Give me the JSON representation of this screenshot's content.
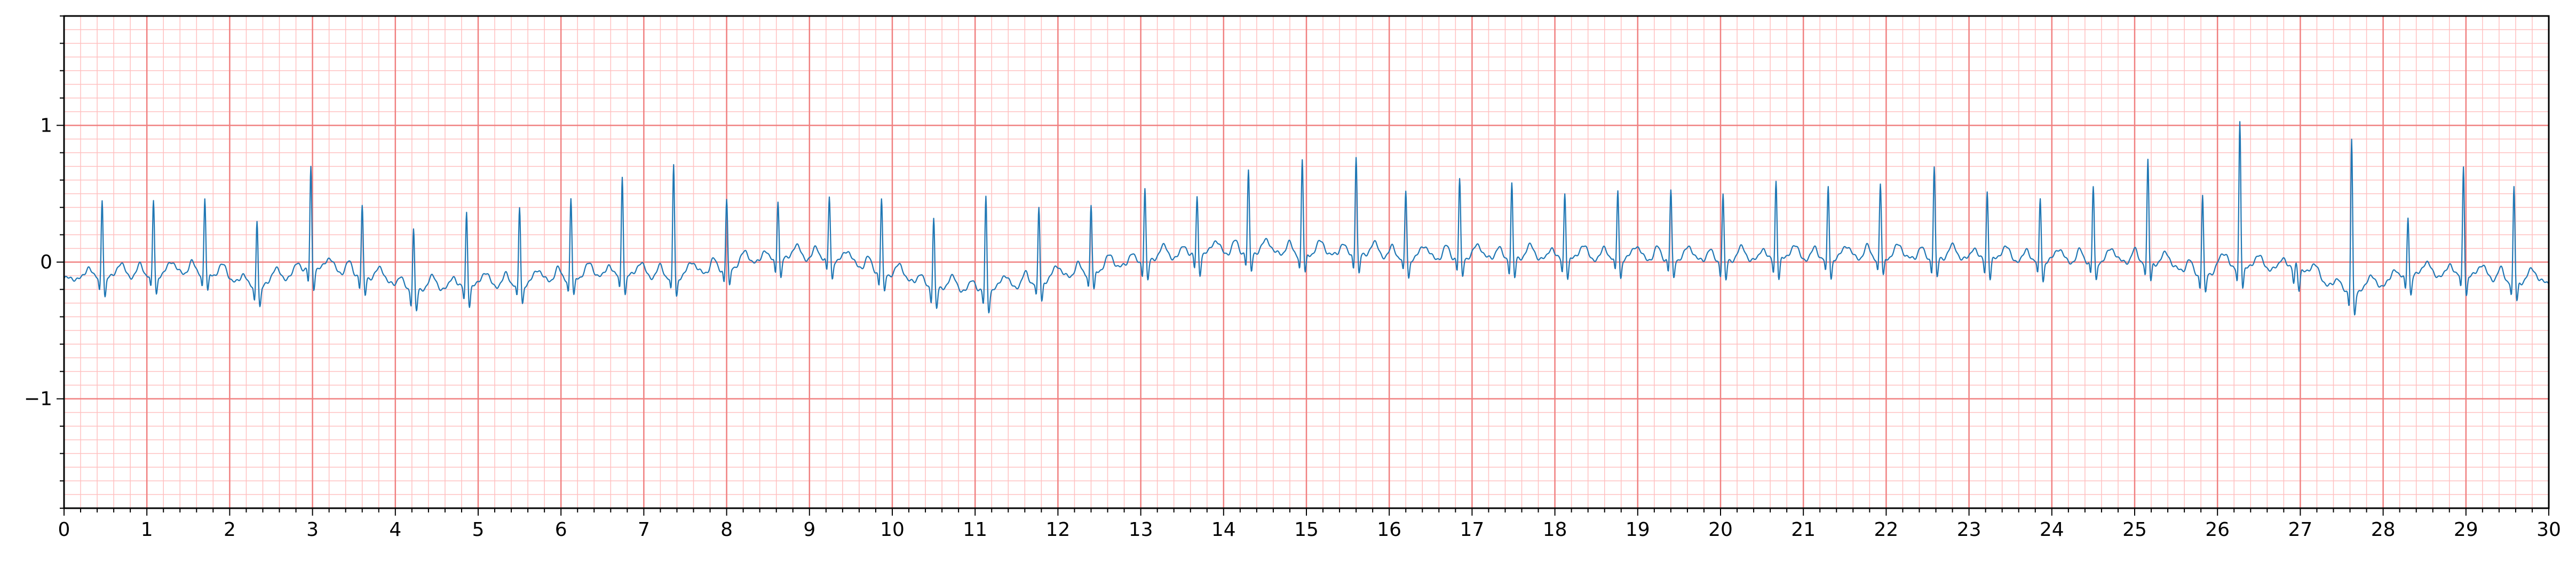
{
  "chart_data": {
    "type": "line",
    "title": "",
    "xlabel": "",
    "ylabel": "",
    "xlim": [
      0,
      30
    ],
    "ylim": [
      -1.8,
      1.8
    ],
    "grid": true,
    "x_ticks": [
      0,
      1,
      2,
      3,
      4,
      5,
      6,
      7,
      8,
      9,
      10,
      11,
      12,
      13,
      14,
      15,
      16,
      17,
      18,
      19,
      20,
      21,
      22,
      23,
      24,
      25,
      26,
      27,
      28,
      29,
      30
    ],
    "x_tick_labels": [
      "0",
      "1",
      "2",
      "3",
      "4",
      "5",
      "6",
      "7",
      "8",
      "9",
      "10",
      "11",
      "12",
      "13",
      "14",
      "15",
      "16",
      "17",
      "18",
      "19",
      "20",
      "21",
      "22",
      "23",
      "24",
      "25",
      "26",
      "27",
      "28",
      "29",
      "30"
    ],
    "y_ticks": [
      -1,
      0,
      1
    ],
    "y_tick_labels": [
      "−1",
      "0",
      "1"
    ],
    "colors": {
      "major_grid": "#f08080",
      "minor_grid": "#ffc0c0",
      "line": "#1f77b4",
      "axes": "#000000"
    },
    "series": [
      {
        "beats": [
          {
            "t": 0.46,
            "peak": 0.47,
            "base": -0.12
          },
          {
            "t": 1.08,
            "peak": 0.45,
            "base": -0.1
          },
          {
            "t": 1.7,
            "peak": 0.47,
            "base": -0.08
          },
          {
            "t": 2.33,
            "peak": 0.32,
            "base": -0.2
          },
          {
            "t": 2.98,
            "peak": 0.7,
            "base": -0.05
          },
          {
            "t": 3.6,
            "peak": 0.4,
            "base": -0.1
          },
          {
            "t": 4.22,
            "peak": 0.25,
            "base": -0.22
          },
          {
            "t": 4.86,
            "peak": 0.37,
            "base": -0.18
          },
          {
            "t": 5.5,
            "peak": 0.4,
            "base": -0.17
          },
          {
            "t": 6.12,
            "peak": 0.47,
            "base": -0.12
          },
          {
            "t": 6.74,
            "peak": 0.64,
            "base": -0.1
          },
          {
            "t": 7.36,
            "peak": 0.71,
            "base": -0.12
          },
          {
            "t": 8.0,
            "peak": 0.46,
            "base": -0.05
          },
          {
            "t": 8.62,
            "peak": 0.46,
            "base": 0.02
          },
          {
            "t": 9.24,
            "peak": 0.48,
            "base": 0.02
          },
          {
            "t": 9.87,
            "peak": 0.46,
            "base": -0.08
          },
          {
            "t": 10.5,
            "peak": 0.33,
            "base": -0.2
          },
          {
            "t": 11.13,
            "peak": 0.48,
            "base": -0.22
          },
          {
            "t": 11.77,
            "peak": 0.39,
            "base": -0.15
          },
          {
            "t": 12.4,
            "peak": 0.42,
            "base": -0.08
          },
          {
            "t": 13.05,
            "peak": 0.55,
            "base": 0.0
          },
          {
            "t": 13.68,
            "peak": 0.48,
            "base": 0.05
          },
          {
            "t": 14.3,
            "peak": 0.66,
            "base": 0.07
          },
          {
            "t": 14.95,
            "peak": 0.75,
            "base": 0.05
          },
          {
            "t": 15.6,
            "peak": 0.78,
            "base": 0.05
          },
          {
            "t": 16.2,
            "peak": 0.52,
            "base": 0.02
          },
          {
            "t": 16.85,
            "peak": 0.6,
            "base": 0.03
          },
          {
            "t": 17.48,
            "peak": 0.58,
            "base": 0.02
          },
          {
            "t": 18.12,
            "peak": 0.51,
            "base": 0.02
          },
          {
            "t": 18.76,
            "peak": 0.53,
            "base": 0.02
          },
          {
            "t": 19.4,
            "peak": 0.52,
            "base": 0.02
          },
          {
            "t": 20.03,
            "peak": 0.5,
            "base": 0.0
          },
          {
            "t": 20.67,
            "peak": 0.6,
            "base": 0.02
          },
          {
            "t": 21.3,
            "peak": 0.55,
            "base": 0.02
          },
          {
            "t": 21.93,
            "peak": 0.57,
            "base": 0.03
          },
          {
            "t": 22.58,
            "peak": 0.7,
            "base": 0.02
          },
          {
            "t": 23.22,
            "peak": 0.52,
            "base": 0.02
          },
          {
            "t": 23.86,
            "peak": 0.47,
            "base": 0.0
          },
          {
            "t": 24.5,
            "peak": 0.55,
            "base": 0.0
          },
          {
            "t": 25.16,
            "peak": 0.74,
            "base": 0.0
          },
          {
            "t": 25.82,
            "peak": 0.49,
            "base": -0.1
          },
          {
            "t": 26.27,
            "peak": 1.04,
            "base": -0.05
          },
          {
            "t": 26.95,
            "peak": 0.0,
            "base": -0.05
          },
          {
            "t": 27.62,
            "peak": 0.91,
            "base": -0.25
          },
          {
            "t": 28.3,
            "peak": 0.34,
            "base": -0.1
          },
          {
            "t": 28.97,
            "peak": 0.71,
            "base": -0.1
          },
          {
            "t": 29.58,
            "peak": 0.54,
            "base": -0.15
          }
        ]
      }
    ]
  }
}
